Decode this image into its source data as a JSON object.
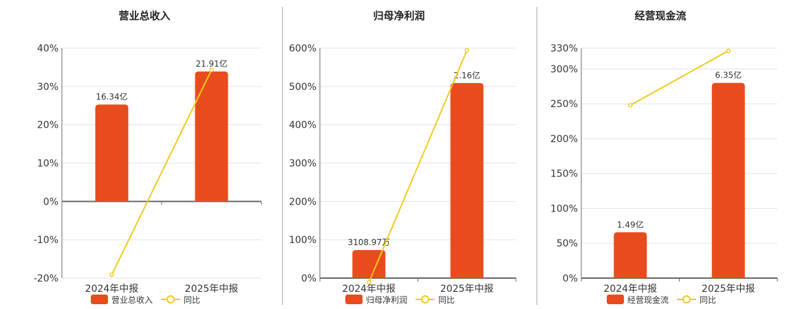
{
  "colors": {
    "bar": "#e84c1d",
    "line": "#f2cb1c",
    "grid": "#dde3ef",
    "axis": "#666",
    "text": "#333"
  },
  "chart_data": [
    {
      "type": "bar+line",
      "title": "营业总收入",
      "categories": [
        "2024年中报",
        "2025年中报"
      ],
      "bar_name": "营业总收入",
      "bar_labels": [
        "16.34亿",
        "21.91亿"
      ],
      "bar_values": [
        16.34,
        21.91
      ],
      "bar_scale_pct_per_unit": 1.547,
      "line_name": "同比",
      "line_values": [
        -19.1,
        34.3
      ],
      "yticks": [
        "-20%",
        "-10%",
        "0%",
        "10%",
        "20%",
        "30%",
        "40%"
      ],
      "ytick_values": [
        -20,
        -10,
        0,
        10,
        20,
        30,
        40
      ],
      "ylim": [
        -20,
        40
      ]
    },
    {
      "type": "bar+line",
      "title": "归母净利润",
      "categories": [
        "2024年中报",
        "2025年中报"
      ],
      "bar_name": "归母净利润",
      "bar_labels": [
        "3108.97万",
        "2.16亿"
      ],
      "bar_values": [
        0.3109,
        2.16
      ],
      "bar_scale_pct_per_unit": 235.6,
      "line_name": "同比",
      "line_values": [
        -11,
        594
      ],
      "yticks": [
        "0%",
        "100%",
        "200%",
        "300%",
        "400%",
        "500%",
        "600%"
      ],
      "ytick_values": [
        0,
        100,
        200,
        300,
        400,
        500,
        600
      ],
      "ylim": [
        0,
        600
      ]
    },
    {
      "type": "bar+line",
      "title": "经营现金流",
      "categories": [
        "2024年中报",
        "2025年中报"
      ],
      "bar_name": "经营现金流",
      "bar_labels": [
        "1.49亿",
        "6.35亿"
      ],
      "bar_values": [
        1.49,
        6.35
      ],
      "bar_scale_pct_per_unit": 44.1,
      "line_name": "同比",
      "line_values": [
        248,
        326
      ],
      "yticks": [
        "0%",
        "50%",
        "100%",
        "150%",
        "200%",
        "250%",
        "300%",
        "330%"
      ],
      "ytick_values": [
        0,
        50,
        100,
        150,
        200,
        250,
        300,
        330
      ],
      "ylim": [
        0,
        330
      ]
    }
  ]
}
